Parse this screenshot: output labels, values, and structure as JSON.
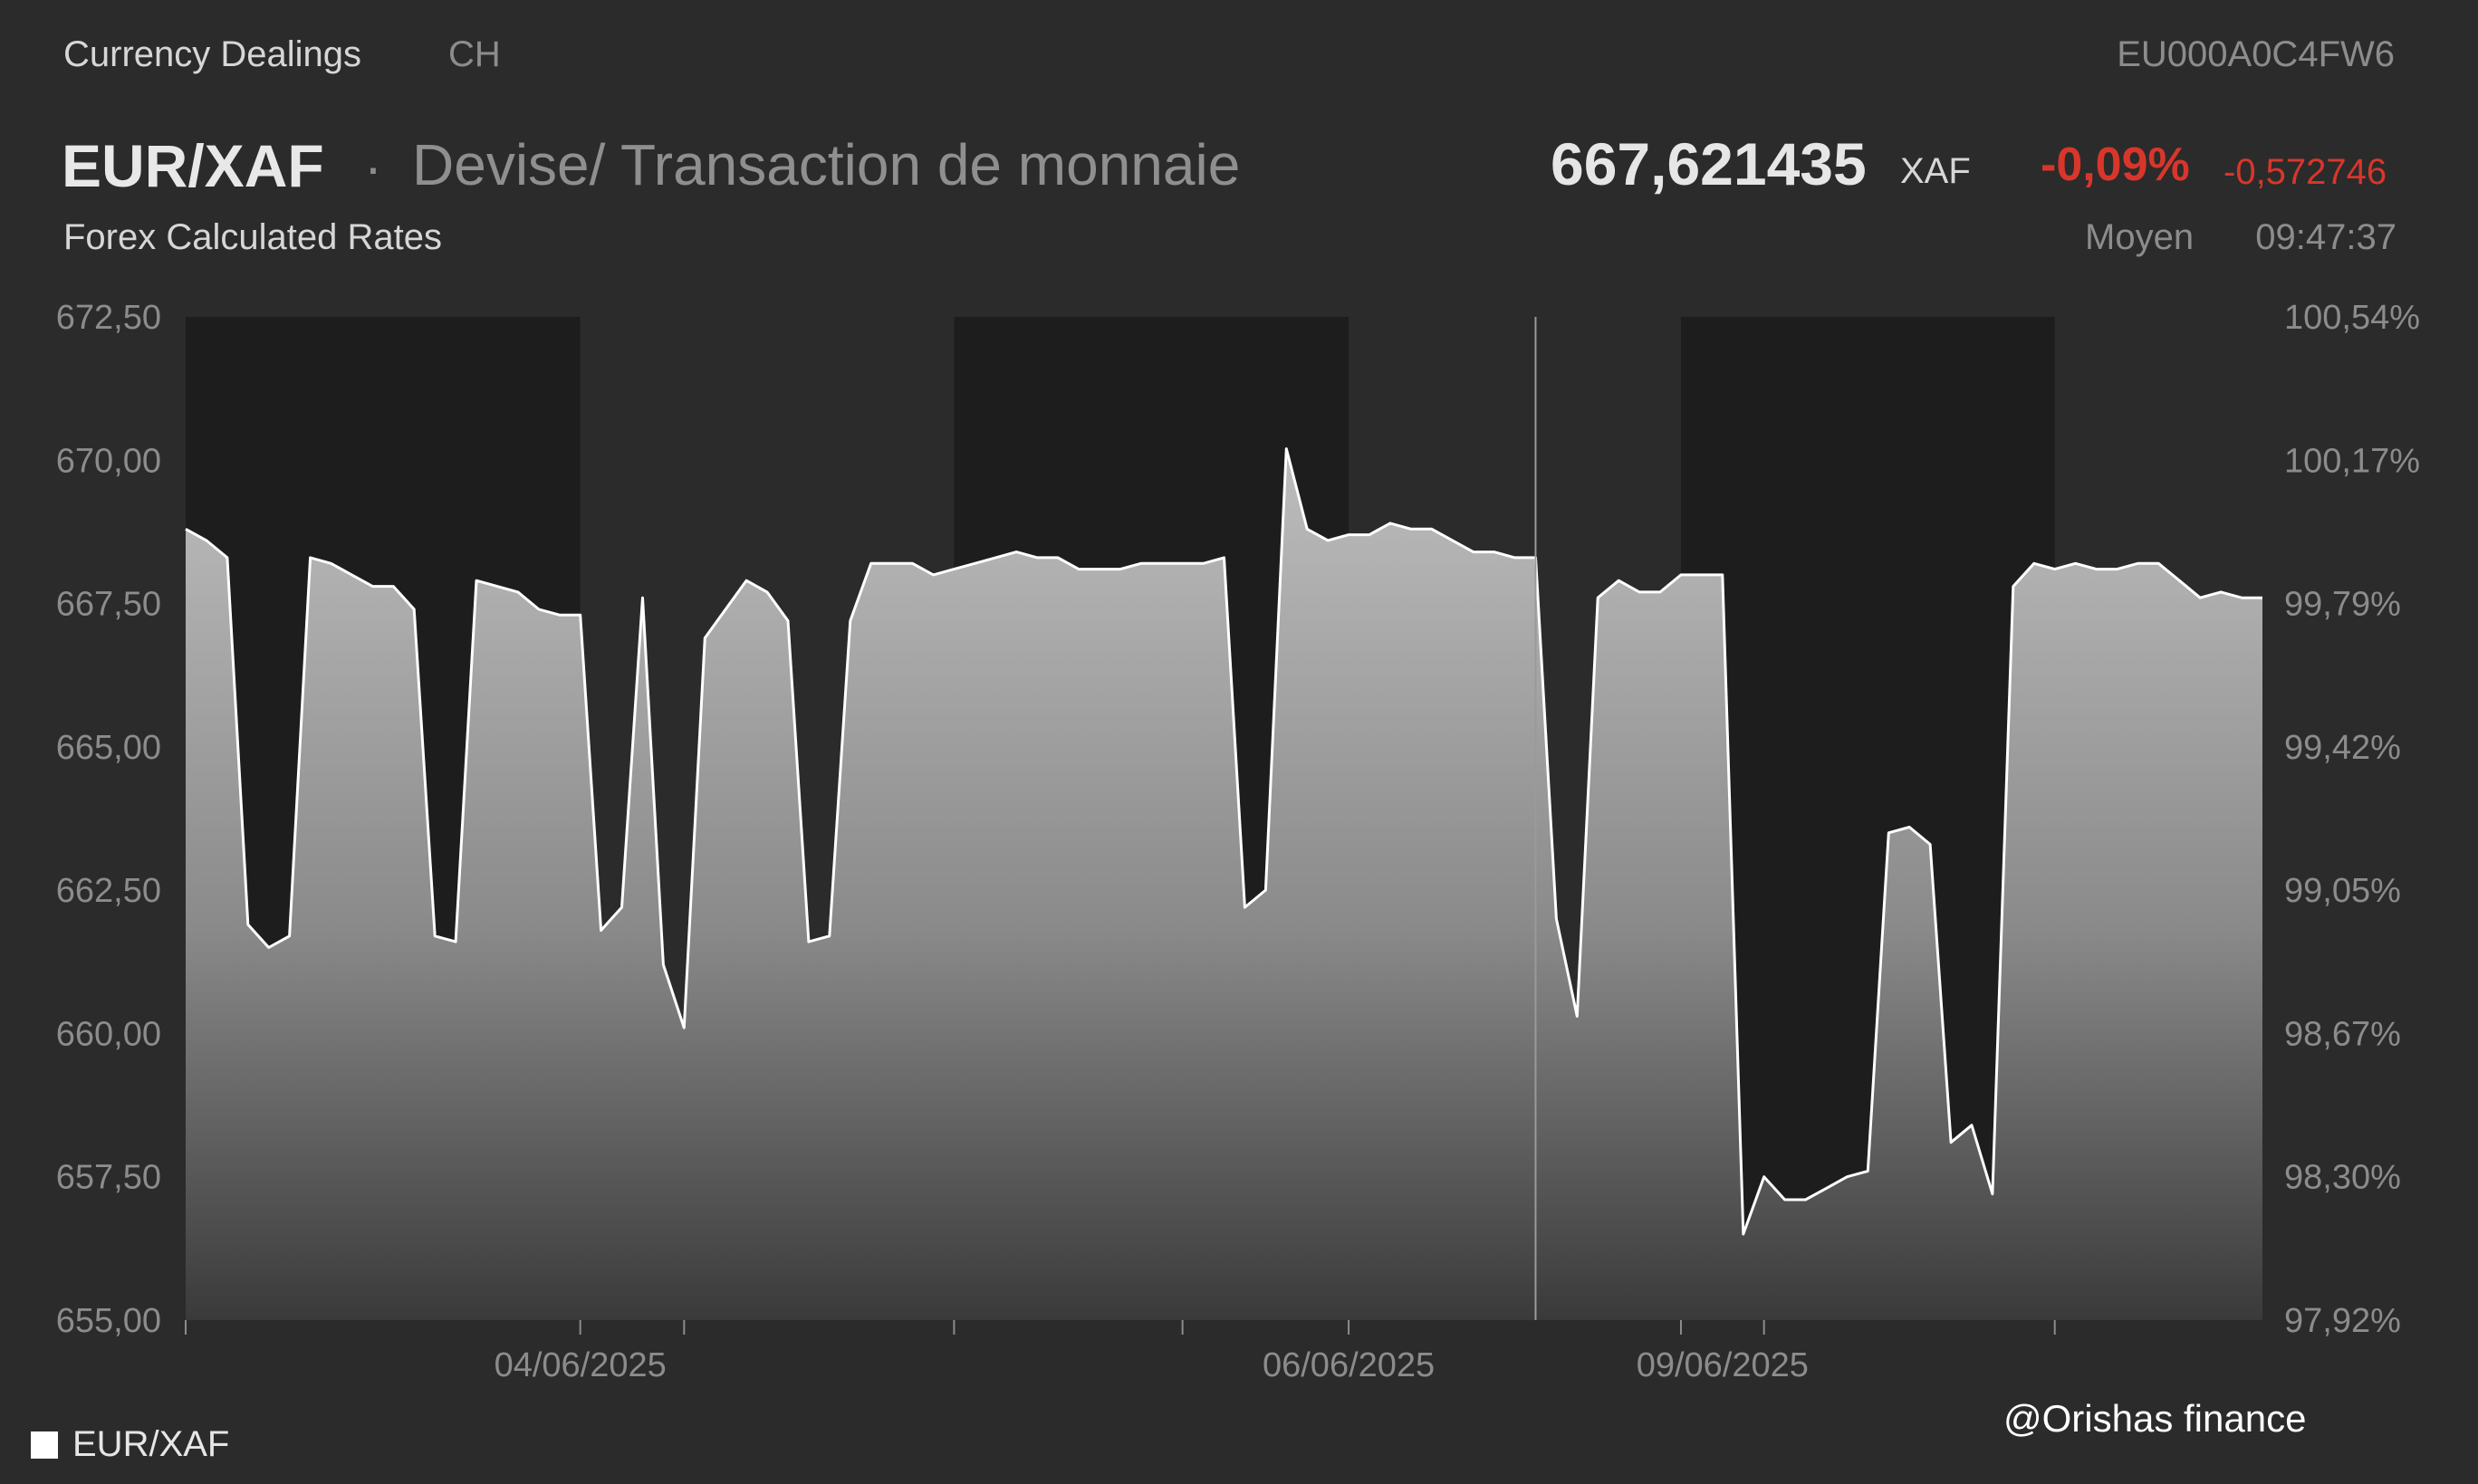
{
  "header": {
    "section": "Currency Dealings",
    "exchange": "CH",
    "isin": "EU000A0C4FW6",
    "pair": "EUR/XAF",
    "separator": "·",
    "description": "Devise/ Transaction de monnaie",
    "subtitle": "Forex Calculated Rates",
    "price": "667,621435",
    "price_unit": "XAF",
    "change_pct": "-0,09%",
    "change_abs": "-0,572746",
    "quote_type": "Moyen",
    "time": "09:47:37"
  },
  "legend": {
    "label": "EUR/XAF",
    "color": "#ffffff"
  },
  "watermark": "@Orishas finance",
  "colors": {
    "background": "#2b2b2b",
    "session_shade": "#1d1d1d",
    "line": "#ffffff",
    "negative": "#d9362b",
    "axis_text": "#8c8c8c"
  },
  "chart_data": {
    "type": "area",
    "series": [
      {
        "name": "EUR/XAF",
        "x": [
          0,
          1,
          2,
          3,
          4,
          5,
          6,
          7,
          8,
          9,
          10,
          11,
          12,
          13,
          14,
          15,
          16,
          17,
          18,
          19,
          20,
          21,
          22,
          23,
          24,
          25,
          26,
          27,
          28,
          29,
          30,
          31,
          32,
          33,
          34,
          35,
          36,
          37,
          38,
          39,
          40,
          41,
          42,
          43,
          44,
          45,
          46,
          47,
          48,
          49,
          50,
          51,
          52,
          53,
          54,
          55,
          56,
          57,
          58,
          59,
          60,
          61,
          62,
          63,
          64,
          65,
          66,
          67,
          68,
          69,
          70,
          71,
          72,
          73,
          74,
          75,
          76,
          77,
          78,
          79,
          80,
          81,
          82,
          83,
          84,
          85,
          86,
          87,
          88,
          89,
          90,
          91,
          92,
          93,
          94,
          95,
          96,
          97,
          98,
          99,
          100
        ],
        "values": [
          668.8,
          668.6,
          668.3,
          661.9,
          661.5,
          661.7,
          668.3,
          668.2,
          668.0,
          667.8,
          667.8,
          667.4,
          661.7,
          661.6,
          667.9,
          667.8,
          667.7,
          667.4,
          667.3,
          667.3,
          661.8,
          662.2,
          667.6,
          661.2,
          660.1,
          666.9,
          667.4,
          667.9,
          667.7,
          667.2,
          661.6,
          661.7,
          667.2,
          668.2,
          668.2,
          668.2,
          668.0,
          668.1,
          668.2,
          668.3,
          668.4,
          668.3,
          668.3,
          668.1,
          668.1,
          668.1,
          668.2,
          668.2,
          668.2,
          668.2,
          668.3,
          662.2,
          662.5,
          670.2,
          668.8,
          668.6,
          668.7,
          668.7,
          668.9,
          668.8,
          668.8,
          668.6,
          668.4,
          668.4,
          668.3,
          668.3,
          662.0,
          660.3,
          667.6,
          667.9,
          667.7,
          667.7,
          668.0,
          668.0,
          668.0,
          656.5,
          657.5,
          657.1,
          657.1,
          657.3,
          657.5,
          657.6,
          663.5,
          663.6,
          663.3,
          658.1,
          658.4,
          657.2,
          667.8,
          668.2,
          668.1,
          668.2,
          668.1,
          668.1,
          668.2,
          668.2,
          667.9,
          667.6,
          667.7,
          667.6,
          667.6
        ],
        "ticks": [
          0,
          24,
          48,
          76
        ]
      }
    ],
    "x_tick_labels": [
      "04/06/2025",
      "06/06/2025",
      "09/06/2025"
    ],
    "xlim": [
      0,
      100
    ],
    "ylim": [
      655.0,
      672.5
    ],
    "y_ticks": [
      655.0,
      657.5,
      660.0,
      662.5,
      665.0,
      667.5,
      670.0,
      672.5
    ],
    "y_tick_labels": [
      "655,00",
      "657,50",
      "660,00",
      "662,50",
      "665,00",
      "667,50",
      "670,00",
      "672,50"
    ],
    "y2_tick_labels": [
      "97,92%",
      "98,30%",
      "98,67%",
      "99,05%",
      "99,42%",
      "99,79%",
      "100,17%",
      "100,54%"
    ],
    "grid": false,
    "legend_position": "bottom-left"
  }
}
